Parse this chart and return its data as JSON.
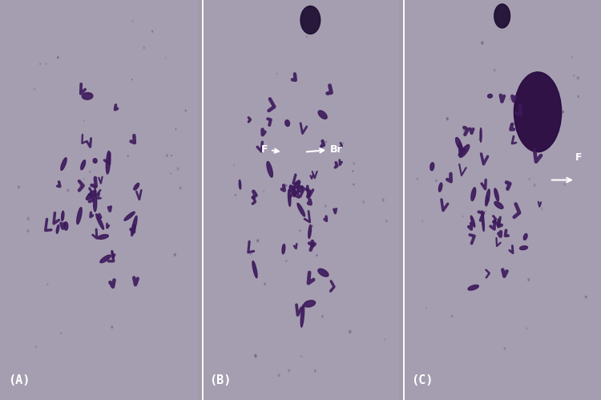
{
  "figsize": [
    7.5,
    4.99
  ],
  "dpi": 100,
  "bg_color": "#a09aaa",
  "panel_labels": [
    "(A)",
    "(B)",
    "(C)"
  ],
  "panel_label_color": "white",
  "panel_label_fontsize": 11,
  "panel_label_fontweight": "bold",
  "divider_color": "white",
  "divider_linewidth": 1.5,
  "cell_color": "#3d1a5c",
  "panel_bg": "#a59eb0"
}
